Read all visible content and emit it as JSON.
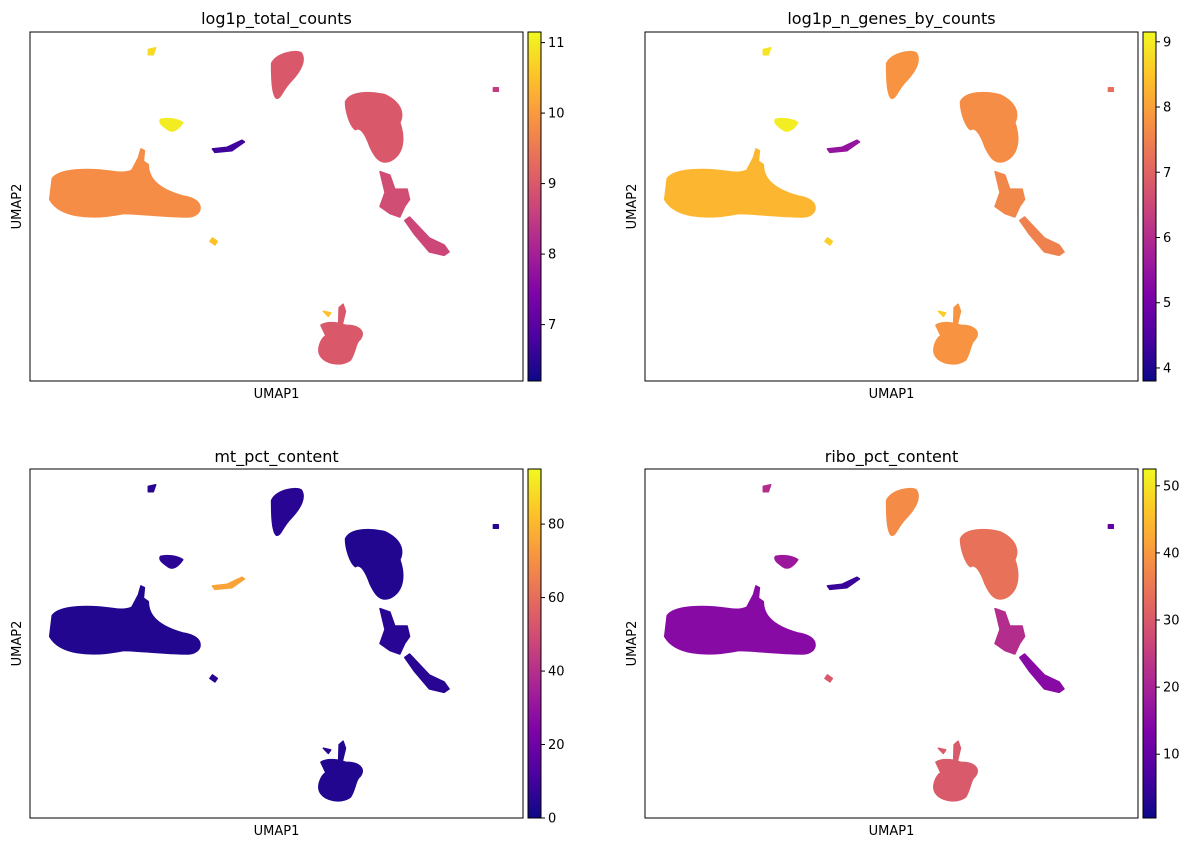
{
  "chart_data": [
    {
      "type": "scatter",
      "title": "log1p_total_counts",
      "xlabel": "UMAP1",
      "ylabel": "UMAP2",
      "colormap": "plasma",
      "colorbar": {
        "range": [
          6.2,
          11.15
        ],
        "ticks": [
          "7",
          "8",
          "9",
          "10",
          "11"
        ]
      },
      "cluster_colors": {
        "main_left": 9.8,
        "top_blob": 9.0,
        "right_big": 9.0,
        "stream": 8.8,
        "tail": 8.7,
        "bottom": 9.0,
        "small_yellow": 11.0,
        "small_purple": 6.7,
        "tiny_top": 10.8,
        "dot_right": 8.5,
        "dot_small": 10.5
      }
    },
    {
      "type": "scatter",
      "title": "log1p_n_genes_by_counts",
      "xlabel": "UMAP1",
      "ylabel": "UMAP2",
      "colormap": "plasma",
      "colorbar": {
        "range": [
          3.8,
          9.15
        ],
        "ticks": [
          "4",
          "5",
          "6",
          "7",
          "8",
          "9"
        ]
      },
      "cluster_colors": {
        "main_left": 8.3,
        "top_blob": 7.8,
        "right_big": 7.7,
        "stream": 7.6,
        "tail": 7.5,
        "bottom": 7.8,
        "small_yellow": 9.0,
        "small_purple": 5.5,
        "tiny_top": 8.9,
        "dot_right": 7.2,
        "dot_small": 8.6
      }
    },
    {
      "type": "scatter",
      "title": "mt_pct_content",
      "xlabel": "UMAP1",
      "ylabel": "UMAP2",
      "colormap": "plasma",
      "colorbar": {
        "range": [
          0,
          95
        ],
        "ticks": [
          "0",
          "20",
          "40",
          "60",
          "80"
        ]
      },
      "cluster_colors": {
        "main_left": 4,
        "top_blob": 5,
        "right_big": 4,
        "stream": 5,
        "tail": 5,
        "bottom": 4,
        "small_yellow": 6,
        "small_purple": 75,
        "tiny_top": 5,
        "dot_right": 5,
        "dot_small": 5
      }
    },
    {
      "type": "scatter",
      "title": "ribo_pct_content",
      "xlabel": "UMAP1",
      "ylabel": "UMAP2",
      "colormap": "plasma",
      "colorbar": {
        "range": [
          0.5,
          52.5
        ],
        "ticks": [
          "10",
          "20",
          "30",
          "40",
          "50"
        ]
      },
      "cluster_colors": {
        "main_left": 15,
        "top_blob": 38,
        "right_big": 34,
        "stream": 22,
        "tail": 15,
        "bottom": 30,
        "small_yellow": 18,
        "small_purple": 5,
        "tiny_top": 22,
        "dot_right": 10,
        "dot_small": 30
      }
    }
  ]
}
